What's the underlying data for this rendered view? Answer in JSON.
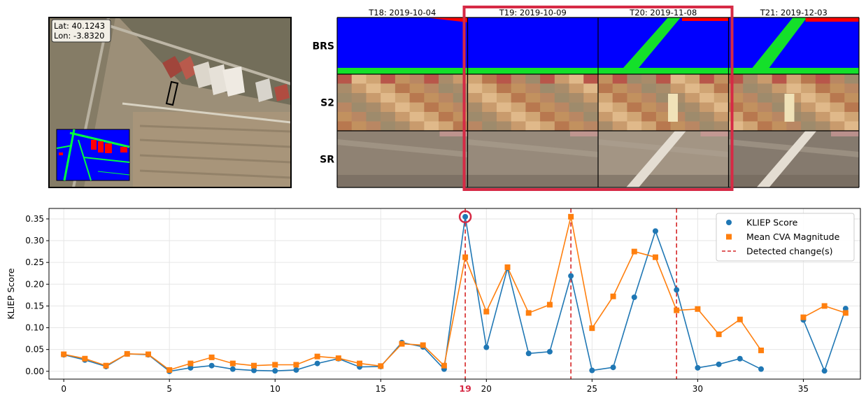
{
  "inset": {
    "lat_label": "Lat: 40.1243",
    "lon_label": "Lon: -3.8320"
  },
  "strip": {
    "time_labels": [
      "T18: 2019-10-04",
      "T19: 2019-10-09",
      "T20: 2019-11-08",
      "T21: 2019-12-03"
    ],
    "row_labels": [
      "BRS",
      "S2",
      "SR"
    ],
    "highlight_color": "#d62a45"
  },
  "chart_data": {
    "type": "line",
    "ylabel": "KLIEP Score",
    "xlim": [
      -0.7,
      37.7
    ],
    "ylim": [
      -0.018,
      0.374
    ],
    "x_ticks": [
      0,
      5,
      10,
      15,
      20,
      25,
      30,
      35
    ],
    "x_tick_labels": [
      "0",
      "5",
      "10",
      "15",
      "20",
      "25",
      "30",
      "35"
    ],
    "y_ticks": [
      0.0,
      0.05,
      0.1,
      0.15,
      0.2,
      0.25,
      0.3,
      0.35
    ],
    "y_tick_labels": [
      "0.00",
      "0.05",
      "0.10",
      "0.15",
      "0.20",
      "0.25",
      "0.30",
      "0.35"
    ],
    "highlight_tick": {
      "x": 19,
      "label": "19",
      "color": "#d62a45"
    },
    "grid": true,
    "legend_position": "top-right",
    "x": [
      0,
      1,
      2,
      3,
      4,
      5,
      6,
      7,
      8,
      9,
      10,
      11,
      12,
      13,
      14,
      15,
      16,
      17,
      18,
      19,
      20,
      21,
      22,
      23,
      24,
      25,
      26,
      27,
      28,
      29,
      30,
      31,
      32,
      33,
      34,
      35,
      36,
      37
    ],
    "series": [
      {
        "name": "KLIEP Score",
        "marker": "circle",
        "color": "#1f77b4",
        "values": [
          0.038,
          0.026,
          0.011,
          0.04,
          0.038,
          0.0,
          0.008,
          0.013,
          0.005,
          0.002,
          0.001,
          0.003,
          0.018,
          0.029,
          0.01,
          0.011,
          0.066,
          0.056,
          0.005,
          0.355,
          0.055,
          0.237,
          0.041,
          0.045,
          0.219,
          0.002,
          0.009,
          0.17,
          0.322,
          0.187,
          0.008,
          0.016,
          0.029,
          0.005,
          null,
          0.118,
          0.001,
          0.144
        ]
      },
      {
        "name": "Mean CVA Magnitude",
        "marker": "square",
        "color": "#ff7f0e",
        "values": [
          0.039,
          0.029,
          0.013,
          0.04,
          0.039,
          0.003,
          0.018,
          0.032,
          0.018,
          0.013,
          0.015,
          0.015,
          0.034,
          0.03,
          0.018,
          0.012,
          0.063,
          0.06,
          0.013,
          0.262,
          0.137,
          0.239,
          0.134,
          0.153,
          0.355,
          0.099,
          0.172,
          0.275,
          0.262,
          0.14,
          0.143,
          0.085,
          0.119,
          0.048,
          null,
          0.124,
          0.15,
          0.134
        ]
      }
    ],
    "change_points": [
      19,
      24,
      29
    ],
    "change_label": "Detected change(s)",
    "change_color": "#d62728",
    "circled_point": {
      "x": 19,
      "color": "#d62a45"
    }
  }
}
